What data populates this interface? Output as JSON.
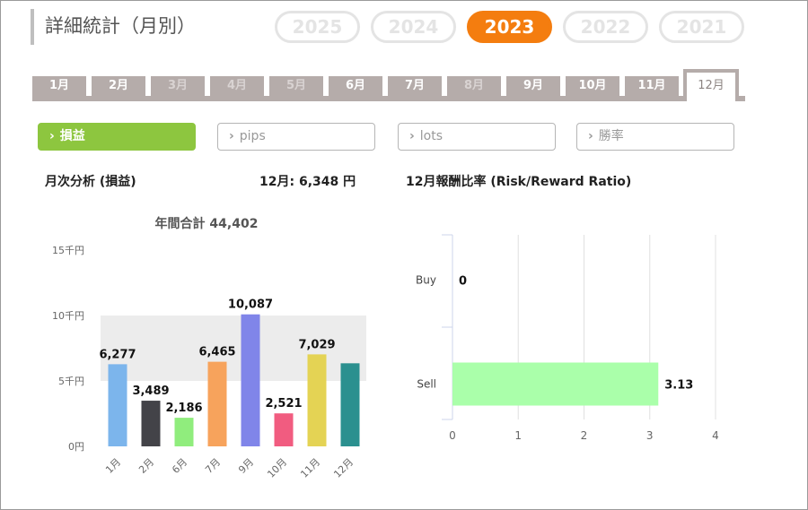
{
  "page_title": "詳細統計（月別）",
  "years": [
    {
      "label": "2025",
      "active": false
    },
    {
      "label": "2024",
      "active": false
    },
    {
      "label": "2023",
      "active": true
    },
    {
      "label": "2022",
      "active": false
    },
    {
      "label": "2021",
      "active": false
    }
  ],
  "months": [
    {
      "label": "1月",
      "state": "normal"
    },
    {
      "label": "2月",
      "state": "normal"
    },
    {
      "label": "3月",
      "state": "disabled"
    },
    {
      "label": "4月",
      "state": "disabled"
    },
    {
      "label": "5月",
      "state": "disabled"
    },
    {
      "label": "6月",
      "state": "normal"
    },
    {
      "label": "7月",
      "state": "normal"
    },
    {
      "label": "8月",
      "state": "disabled"
    },
    {
      "label": "9月",
      "state": "normal"
    },
    {
      "label": "10月",
      "state": "normal"
    },
    {
      "label": "11月",
      "state": "normal"
    },
    {
      "label": "12月",
      "state": "active"
    }
  ],
  "metrics": [
    {
      "label": "損益",
      "active": true
    },
    {
      "label": "pips",
      "active": false
    },
    {
      "label": "lots",
      "active": false
    },
    {
      "label": "勝率",
      "active": false
    }
  ],
  "chevron_glyph": "›",
  "left_header": "月次分析 (損益)",
  "month_summary": "12月:  6,348 円",
  "right_header": "12月報酬比率 (Risk/Reward Ratio)",
  "chart_data": [
    {
      "type": "bar",
      "title": "年間合計 44,402",
      "categories": [
        "1月",
        "2月",
        "6月",
        "7月",
        "9月",
        "10月",
        "11月",
        "12月"
      ],
      "values": [
        6277,
        3489,
        2186,
        6465,
        10087,
        2521,
        7029,
        6348
      ],
      "data_labels": [
        "6,277",
        "3,489",
        "2,186",
        "6,465",
        "10,087",
        "2,521",
        "7,029",
        ""
      ],
      "colors": [
        "#7cb5ec",
        "#434348",
        "#90ed7d",
        "#f7a35c",
        "#8085e9",
        "#f15c80",
        "#e4d354",
        "#2b908f"
      ],
      "ylim": [
        0,
        15000
      ],
      "yticks": [
        0,
        5000,
        10000,
        15000
      ],
      "ytick_labels": [
        "0円",
        "5千円",
        "10千円",
        "15千円"
      ],
      "xlabel": "",
      "ylabel": "",
      "grid": "alternating bands"
    },
    {
      "type": "bar",
      "orientation": "horizontal",
      "title": "",
      "categories": [
        "Buy",
        "Sell"
      ],
      "values": [
        0,
        3.13
      ],
      "data_labels": [
        "0",
        "3.13"
      ],
      "color": "#aaffaa",
      "xlim": [
        0,
        4
      ],
      "xticks": [
        0,
        1,
        2,
        3,
        4
      ],
      "xtick_labels": [
        "0",
        "1",
        "2",
        "3",
        "4"
      ],
      "xlabel": "",
      "ylabel": "",
      "grid": "vertical lines"
    }
  ]
}
